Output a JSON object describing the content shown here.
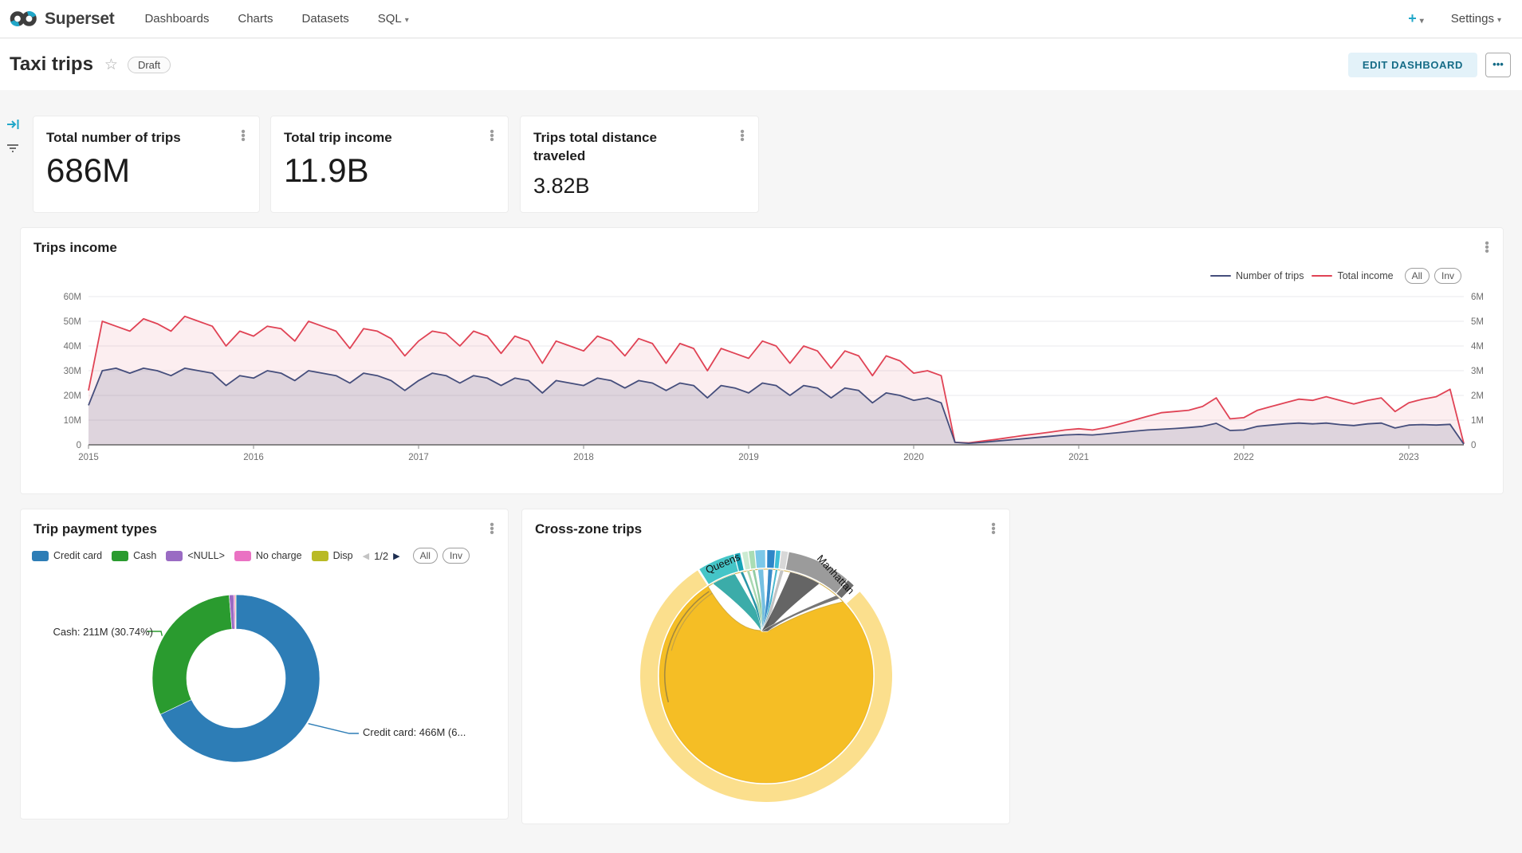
{
  "nav": {
    "brand": "Superset",
    "items": [
      {
        "label": "Dashboards"
      },
      {
        "label": "Charts"
      },
      {
        "label": "Datasets"
      },
      {
        "label": "SQL"
      }
    ],
    "plus_label": "+",
    "settings_label": "Settings",
    "accent_color": "#20a7c9"
  },
  "header": {
    "title": "Taxi trips",
    "badge": "Draft",
    "edit_button": "EDIT DASHBOARD",
    "more_button": "•••"
  },
  "kpis": [
    {
      "title": "Total number of trips",
      "value": "686M"
    },
    {
      "title": "Total trip income",
      "value": "11.9B"
    },
    {
      "title": "Trips total distance traveled",
      "value": "3.82B"
    }
  ],
  "trips_income": {
    "title": "Trips income",
    "legend": [
      {
        "label": "Number of trips",
        "color": "#454e7c"
      },
      {
        "label": "Total income",
        "color": "#e04355"
      }
    ],
    "buttons": {
      "all": "All",
      "inv": "Inv"
    },
    "chart_data": {
      "type": "area",
      "x_range": [
        "2015-01",
        "2023-05"
      ],
      "x_ticks": [
        "2015",
        "2016",
        "2017",
        "2018",
        "2019",
        "2020",
        "2021",
        "2022",
        "2023"
      ],
      "x_tick_index": [
        0,
        12,
        24,
        36,
        48,
        60,
        72,
        84,
        96
      ],
      "y_left": {
        "ticks": [
          "60M",
          "50M",
          "40M",
          "30M",
          "20M",
          "10M",
          "0"
        ],
        "max": 60
      },
      "y_right": {
        "ticks": [
          "6M",
          "5M",
          "4M",
          "3M",
          "2M",
          "1M",
          "0"
        ],
        "max": 6
      },
      "units": "millions (left axis scale)",
      "series": [
        {
          "name": "Number of trips",
          "color": "#454e7c",
          "fill_opacity": 0.16,
          "values": [
            16,
            30,
            31,
            29,
            31,
            30,
            28,
            31,
            30,
            29,
            24,
            28,
            27,
            30,
            29,
            26,
            30,
            29,
            28,
            25,
            29,
            28,
            26,
            22,
            26,
            29,
            28,
            25,
            28,
            27,
            24,
            27,
            26,
            21,
            26,
            25,
            24,
            27,
            26,
            23,
            26,
            25,
            22,
            25,
            24,
            19,
            24,
            23,
            21,
            25,
            24,
            20,
            24,
            23,
            19,
            23,
            22,
            17,
            21,
            20,
            18,
            19,
            17,
            1,
            0.6,
            1,
            1.5,
            2,
            2.5,
            3,
            3.5,
            4,
            4.2,
            4,
            4.5,
            5,
            5.5,
            6,
            6.3,
            6.6,
            7,
            7.5,
            8.7,
            5.8,
            6,
            7.5,
            8,
            8.5,
            8.8,
            8.5,
            8.8,
            8.2,
            7.8,
            8.5,
            8.8,
            6.8,
            8,
            8.2,
            8,
            8.3,
            0.3
          ]
        },
        {
          "name": "Total income",
          "color": "#e04355",
          "fill_opacity": 0.09,
          "values": [
            22,
            50,
            48,
            46,
            51,
            49,
            46,
            52,
            50,
            48,
            40,
            46,
            44,
            48,
            47,
            42,
            50,
            48,
            46,
            39,
            47,
            46,
            43,
            36,
            42,
            46,
            45,
            40,
            46,
            44,
            37,
            44,
            42,
            33,
            42,
            40,
            38,
            44,
            42,
            36,
            43,
            41,
            33,
            41,
            39,
            30,
            39,
            37,
            35,
            42,
            40,
            33,
            40,
            38,
            31,
            38,
            36,
            28,
            36,
            34,
            29,
            30,
            28,
            1,
            0.8,
            1.5,
            2.2,
            3,
            3.8,
            4.5,
            5.2,
            6,
            6.5,
            6,
            7,
            8.5,
            10,
            11.5,
            13,
            13.5,
            14,
            15.5,
            19,
            10.5,
            11,
            14,
            15.5,
            17,
            18.5,
            18,
            19.5,
            18,
            16.5,
            18,
            19,
            13.5,
            17,
            18.5,
            19.5,
            22.5,
            0.5
          ]
        }
      ]
    }
  },
  "payment_types": {
    "title": "Trip payment types",
    "legend": [
      {
        "label": "Credit card",
        "color": "#2d7db6"
      },
      {
        "label": "Cash",
        "color": "#2a9b2f"
      },
      {
        "label": "<NULL>",
        "color": "#9a6bc3"
      },
      {
        "label": "No charge",
        "color": "#ea72c3"
      },
      {
        "label": "Disp",
        "color": "#b9ba25"
      }
    ],
    "pager": {
      "prev": "◀",
      "page": "1/2",
      "next": "▶"
    },
    "buttons": {
      "all": "All",
      "inv": "Inv"
    },
    "callouts": [
      {
        "text": "Cash: 211M (30.74%)",
        "color": "#2a9b2f"
      },
      {
        "text": "Credit card: 466M (6...",
        "color": "#2d7db6"
      }
    ],
    "chart_data": {
      "type": "pie",
      "donut": true,
      "total": 686,
      "slices": [
        {
          "label": "Credit card",
          "value": 466,
          "color": "#2d7db6"
        },
        {
          "label": "Cash",
          "value": 211,
          "color": "#2a9b2f"
        },
        {
          "label": "<NULL>",
          "value": 6,
          "color": "#9a6bc3"
        },
        {
          "label": "No charge",
          "value": 2,
          "color": "#ea72c3"
        },
        {
          "label": "Disp",
          "value": 1,
          "color": "#b9ba25"
        }
      ]
    }
  },
  "cross_zone": {
    "title": "Cross-zone trips",
    "chart_data": {
      "type": "chord",
      "zones": [
        "Queens",
        "Manhattan"
      ],
      "ring": {
        "color": "#fbdf8d",
        "start": 48,
        "end": 327
      },
      "self_chord_color": "#f5be25",
      "arcs": [
        {
          "start": -32,
          "end": -15,
          "color": "#45c5c7",
          "label": "Queens"
        },
        {
          "start": -14.5,
          "end": -12,
          "color": "#17a5b8"
        },
        {
          "start": -11,
          "end": -8.5,
          "color": "#ccebd2"
        },
        {
          "start": -8,
          "end": -5.5,
          "color": "#a9ddb4"
        },
        {
          "start": -5,
          "end": -0.5,
          "color": "#7cc8e8"
        },
        {
          "start": 0.5,
          "end": 4,
          "color": "#2e86c8"
        },
        {
          "start": 4.5,
          "end": 6.5,
          "color": "#3fbfd8"
        },
        {
          "start": 7,
          "end": 10,
          "color": "#d8d8d8"
        },
        {
          "start": 10.5,
          "end": 40,
          "color": "#9b9b9b",
          "label": "Manhattan"
        },
        {
          "start": 40.5,
          "end": 44,
          "color": "#6e6e6e"
        }
      ],
      "ribbons": [
        {
          "start": -30,
          "end": -17,
          "color": "#2aa5a2",
          "opacity": 0.92
        },
        {
          "start": -14,
          "end": -12.5,
          "color": "#118a9c",
          "opacity": 0.9
        },
        {
          "start": -10.5,
          "end": -9,
          "color": "#9fd4a8",
          "opacity": 0.9
        },
        {
          "start": -7.5,
          "end": -6,
          "color": "#86c89a",
          "opacity": 0.9
        },
        {
          "start": -4.5,
          "end": -1.5,
          "color": "#66b9df",
          "opacity": 0.9
        },
        {
          "start": 1,
          "end": 3.5,
          "color": "#2f86c6",
          "opacity": 0.95
        },
        {
          "start": 5,
          "end": 6.2,
          "color": "#35afc9",
          "opacity": 0.9
        },
        {
          "start": 7.5,
          "end": 9.5,
          "color": "#bdbdbd",
          "opacity": 0.9
        },
        {
          "start": 13,
          "end": 30,
          "color": "#4a4a4a",
          "opacity": 0.85
        },
        {
          "start": 41,
          "end": 43.5,
          "color": "#5e5e5e",
          "opacity": 0.85
        }
      ]
    }
  }
}
